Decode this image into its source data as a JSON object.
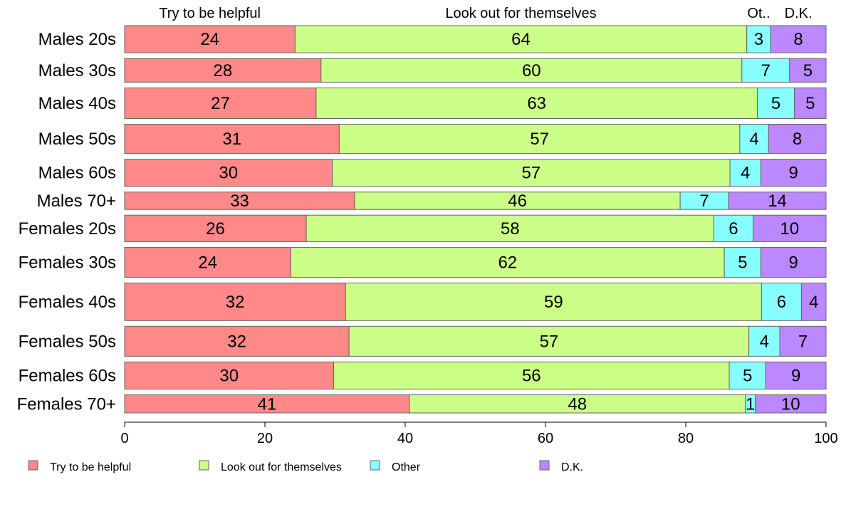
{
  "chart_data": {
    "type": "bar",
    "orientation": "horizontal",
    "stacked": true,
    "percent": true,
    "categories": [
      "Males 20s",
      "Males 30s",
      "Males 40s",
      "Males 50s",
      "Males 60s",
      "Males 70+",
      "Females 20s",
      "Females 30s",
      "Females 40s",
      "Females 50s",
      "Females 60s",
      "Females 70+"
    ],
    "relative_widths": [
      39,
      34,
      44,
      42,
      39,
      25,
      38,
      43,
      54,
      43,
      39,
      26
    ],
    "series": [
      {
        "name": "Try to be helpful",
        "short": "Try to be helpful",
        "color": "#ff8888",
        "values": [
          24.3,
          28.0,
          27.3,
          30.6,
          29.6,
          32.8,
          25.9,
          23.7,
          31.5,
          32.0,
          29.8,
          40.6
        ]
      },
      {
        "name": "Look out for themselves",
        "short": "Look out for themselves",
        "color": "#ccff88",
        "values": [
          64.4,
          60.0,
          62.9,
          57.1,
          56.7,
          46.4,
          58.1,
          61.8,
          59.3,
          57.0,
          56.4,
          47.9
        ]
      },
      {
        "name": "Other",
        "short": "Ot..",
        "color": "#88ffff",
        "values": [
          3.4,
          6.8,
          5.3,
          4.1,
          4.4,
          6.9,
          5.6,
          5.2,
          5.7,
          4.4,
          5.2,
          1.4
        ]
      },
      {
        "name": "D.K.",
        "short": "D.K.",
        "color": "#bb88ff",
        "values": [
          7.9,
          5.2,
          4.5,
          8.2,
          9.3,
          13.9,
          10.4,
          9.3,
          3.5,
          6.6,
          8.6,
          10.1
        ]
      }
    ],
    "xlim": [
      0,
      100
    ],
    "xticks": [
      0,
      20,
      40,
      60,
      80,
      100
    ],
    "legend_position": "bottom"
  }
}
